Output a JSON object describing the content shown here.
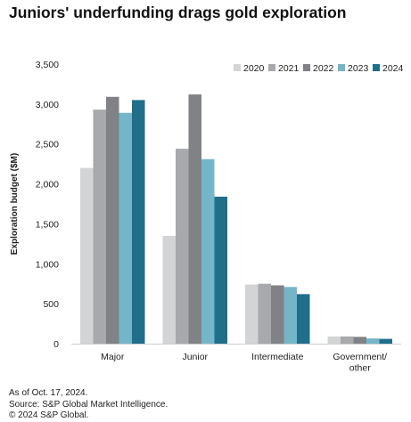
{
  "chart_data": {
    "type": "bar",
    "title": "Juniors' underfunding drags gold exploration",
    "xlabel": "",
    "ylabel": "Exploration budget ($M)",
    "ylim": [
      0,
      3500
    ],
    "yticks": [
      0,
      500,
      1000,
      1500,
      2000,
      2500,
      3000,
      3500
    ],
    "ytick_labels": [
      "0",
      "500",
      "1,000",
      "1,500",
      "2,000",
      "2,500",
      "3,000",
      "3,500"
    ],
    "categories": [
      "Major",
      "Junior",
      "Intermediate",
      "Government/ other"
    ],
    "series": [
      {
        "name": "2020",
        "color": "#d3d4d6",
        "values": [
          2200,
          1350,
          740,
          90
        ]
      },
      {
        "name": "2021",
        "color": "#a7a9ac",
        "values": [
          2930,
          2440,
          750,
          90
        ]
      },
      {
        "name": "2022",
        "color": "#808285",
        "values": [
          3090,
          3120,
          730,
          85
        ]
      },
      {
        "name": "2023",
        "color": "#74b6c8",
        "values": [
          2890,
          2310,
          710,
          65
        ]
      },
      {
        "name": "2024",
        "color": "#1f6f8b",
        "values": [
          3050,
          1840,
          620,
          60
        ]
      }
    ],
    "grid": false,
    "legend_position": "top-right"
  },
  "footer": {
    "date_note": "As of Oct. 17, 2024.",
    "source": "Source: S&P Global Market Intelligence.",
    "copyright": "© 2024 S&P Global."
  }
}
